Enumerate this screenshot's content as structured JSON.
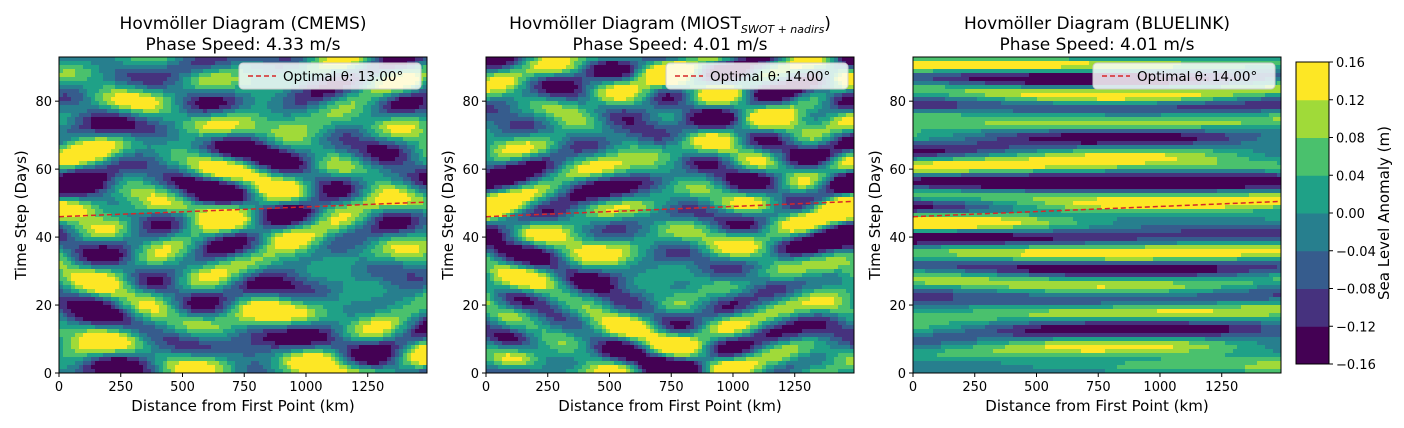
{
  "figure": {
    "colorbar": {
      "label": "Sea Level Anomaly (m)",
      "levels": [
        -0.16,
        -0.12,
        -0.08,
        -0.04,
        0.0,
        0.04,
        0.08,
        0.12,
        0.16
      ],
      "tick_labels": [
        "−0.16",
        "−0.12",
        "−0.08",
        "−0.04",
        "0.00",
        "0.04",
        "0.08",
        "0.12",
        "0.16"
      ],
      "colors": [
        "#440154",
        "#46327e",
        "#365c8d",
        "#277f8e",
        "#1fa187",
        "#4ac16d",
        "#a0da39",
        "#fde725"
      ]
    }
  },
  "chart_data": [
    {
      "type": "heatmap",
      "title": "Hovmöller Diagram (CMEMS)",
      "subtitle": "Phase Speed: 4.33 m/s",
      "xlabel": "Distance from First Point (km)",
      "ylabel": "Time Step (Days)",
      "xlim": [
        0,
        1490
      ],
      "ylim": [
        0,
        93
      ],
      "x_ticks": [
        0,
        250,
        500,
        750,
        1000,
        1250
      ],
      "x_tick_labels": [
        "0",
        "250",
        "500",
        "750",
        "1000",
        "1250"
      ],
      "y_ticks": [
        0,
        20,
        40,
        60,
        80
      ],
      "y_tick_labels": [
        "0",
        "20",
        "40",
        "60",
        "80"
      ],
      "fit_line": {
        "x": [
          0,
          1490
        ],
        "y": [
          46.0,
          50.3
        ],
        "color": "#d62728",
        "style": "dashed"
      },
      "legend": {
        "label": "Optimal θ: 13.00°",
        "position": "upper right"
      },
      "field_pattern": "blobs"
    },
    {
      "type": "heatmap",
      "title": "Hovmöller Diagram (MIOST",
      "title_subscript": "SWOT + nadirs",
      "title_close": ")",
      "subtitle": "Phase Speed: 4.01 m/s",
      "xlabel": "Distance from First Point (km)",
      "ylabel": "Time Step (Days)",
      "xlim": [
        0,
        1490
      ],
      "ylim": [
        0,
        93
      ],
      "x_ticks": [
        0,
        250,
        500,
        750,
        1000,
        1250
      ],
      "x_tick_labels": [
        "0",
        "250",
        "500",
        "750",
        "1000",
        "1250"
      ],
      "y_ticks": [
        0,
        20,
        40,
        60,
        80
      ],
      "y_tick_labels": [
        "0",
        "20",
        "40",
        "60",
        "80"
      ],
      "fit_line": {
        "x": [
          0,
          1490
        ],
        "y": [
          46.0,
          50.5
        ],
        "color": "#d62728",
        "style": "dashed"
      },
      "legend": {
        "label": "Optimal θ: 14.00°",
        "position": "upper right"
      },
      "field_pattern": "mixed"
    },
    {
      "type": "heatmap",
      "title": "Hovmöller Diagram (BLUELINK)",
      "subtitle": "Phase Speed: 4.01 m/s",
      "xlabel": "Distance from First Point (km)",
      "ylabel": "Time Step (Days)",
      "xlim": [
        0,
        1490
      ],
      "ylim": [
        0,
        93
      ],
      "x_ticks": [
        0,
        250,
        500,
        750,
        1000,
        1250
      ],
      "x_tick_labels": [
        "0",
        "250",
        "500",
        "750",
        "1000",
        "1250"
      ],
      "y_ticks": [
        0,
        20,
        40,
        60,
        80
      ],
      "y_tick_labels": [
        "0",
        "20",
        "40",
        "60",
        "80"
      ],
      "fit_line": {
        "x": [
          0,
          1490
        ],
        "y": [
          46.0,
          50.5
        ],
        "color": "#d62728",
        "style": "dashed"
      },
      "legend": {
        "label": "Optimal θ: 14.00°",
        "position": "upper right"
      },
      "field_pattern": "bands"
    }
  ]
}
